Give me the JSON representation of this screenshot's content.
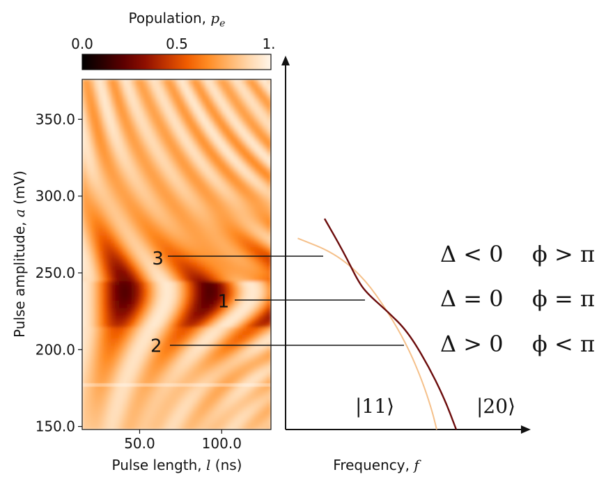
{
  "colors": {
    "cmap": [
      "#000000",
      "#2b0000",
      "#5e0000",
      "#8f0f00",
      "#c23500",
      "#f05d00",
      "#ff8c24",
      "#ffb46a",
      "#ffd9b0",
      "#fff6ea"
    ],
    "curve_dark": "#6b0b0b",
    "curve_light": "#f5c08a",
    "axis": "#111111"
  },
  "colorbar": {
    "title_prefix": "Population, ",
    "title_symbol": "p",
    "title_subscript": "e",
    "ticks": [
      "0.0",
      "0.5",
      "1."
    ]
  },
  "chart_data": [
    {
      "type": "heatmap",
      "xlabel_prefix": "Pulse length, ",
      "xlabel_symbol": "l",
      "xlabel_unit": " (ns)",
      "ylabel_prefix": "Pulse amplitude, ",
      "ylabel_symbol": "a",
      "ylabel_unit": " (mV)",
      "xlim": [
        15,
        130
      ],
      "ylim": [
        148,
        376
      ],
      "xticks": [
        50.0,
        100.0
      ],
      "xtick_labels": [
        "50.0",
        "100.0"
      ],
      "yticks": [
        150.0,
        200.0,
        250.0,
        300.0,
        350.0
      ],
      "ytick_labels": [
        "150.0",
        "200.0",
        "250.0",
        "300.0",
        "350.0"
      ],
      "colorbar_range": [
        0.0,
        1.0
      ],
      "horizontal_artifact_amplitude": 177,
      "markers": [
        {
          "label": "3",
          "x": 68,
          "y": 260
        },
        {
          "label": "1",
          "x": 108,
          "y": 232
        },
        {
          "label": "2",
          "x": 67,
          "y": 203
        }
      ]
    },
    {
      "type": "line",
      "xlabel_prefix": "Frequency, ",
      "xlabel_symbol": "f",
      "series": [
        {
          "name": "|11⟩",
          "color": "#f5c08a",
          "points": [
            [
              0.05,
              0.78
            ],
            [
              0.2,
              0.72
            ],
            [
              0.32,
              0.62
            ],
            [
              0.42,
              0.48
            ],
            [
              0.5,
              0.34
            ],
            [
              0.56,
              0.2
            ],
            [
              0.6,
              0.08
            ],
            [
              0.62,
              0.0
            ]
          ]
        },
        {
          "name": "|20⟩",
          "color": "#6b0b0b",
          "points": [
            [
              0.16,
              0.86
            ],
            [
              0.24,
              0.72
            ],
            [
              0.3,
              0.6
            ],
            [
              0.34,
              0.55
            ],
            [
              0.42,
              0.48
            ],
            [
              0.5,
              0.4
            ],
            [
              0.58,
              0.27
            ],
            [
              0.65,
              0.13
            ],
            [
              0.7,
              0.0
            ]
          ]
        }
      ],
      "kets": [
        "|11⟩",
        "|20⟩"
      ],
      "annotations": [
        {
          "delta": "Δ < 0",
          "phi": "ϕ > π"
        },
        {
          "delta": "Δ = 0",
          "phi": "ϕ = π"
        },
        {
          "delta": "Δ > 0",
          "phi": "ϕ < π"
        }
      ]
    }
  ]
}
